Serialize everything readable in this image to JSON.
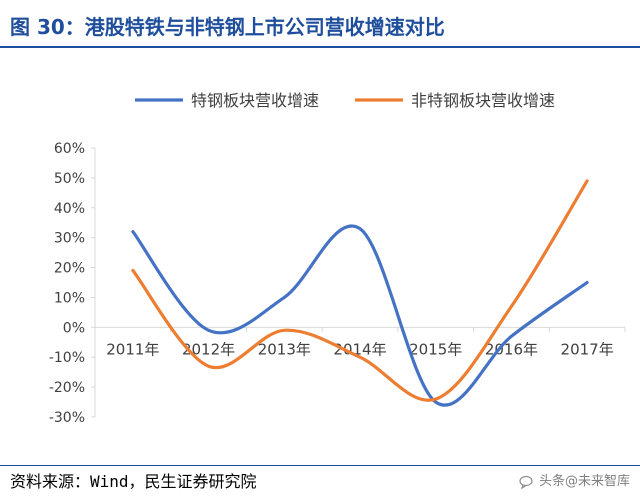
{
  "header": {
    "title": "图 30：港股特铁与非特钢上市公司营收增速对比"
  },
  "footer": {
    "source": "资料来源：Wind，民生证券研究院",
    "watermark": "头条@未来智库"
  },
  "chart_data": {
    "type": "line",
    "title": "",
    "xlabel": "",
    "ylabel": "",
    "categories": [
      "2011年",
      "2012年",
      "2013年",
      "2014年",
      "2015年",
      "2016年",
      "2017年"
    ],
    "ylim": [
      -0.3,
      0.6
    ],
    "yticks": [
      "60%",
      "50%",
      "40%",
      "30%",
      "20%",
      "10%",
      "0%",
      "-10%",
      "-20%",
      "-30%"
    ],
    "ytick_values": [
      0.6,
      0.5,
      0.4,
      0.3,
      0.2,
      0.1,
      0.0,
      -0.1,
      -0.2,
      -0.3
    ],
    "legend_position": "top",
    "smooth": true,
    "series": [
      {
        "name": "特钢板块营收增速",
        "color": "#4472c4",
        "values": [
          0.32,
          -0.01,
          0.1,
          0.33,
          -0.25,
          -0.03,
          0.15
        ]
      },
      {
        "name": "非特钢板块营收增速",
        "color": "#ed7d31",
        "values": [
          0.19,
          -0.13,
          -0.01,
          -0.1,
          -0.24,
          0.07,
          0.49
        ]
      }
    ]
  }
}
